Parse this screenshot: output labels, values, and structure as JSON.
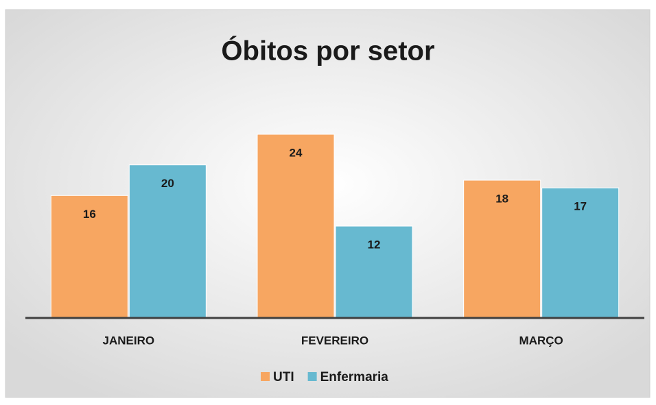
{
  "chart_data": {
    "type": "bar",
    "title": "Óbitos por setor",
    "categories": [
      "JANEIRO",
      "FEVEREIRO",
      "MARÇO"
    ],
    "series": [
      {
        "name": "UTI",
        "color": "#f7a661",
        "values": [
          16,
          24,
          18
        ]
      },
      {
        "name": "Enfermaria",
        "color": "#67b9d0",
        "values": [
          20,
          12,
          17
        ]
      }
    ]
  }
}
